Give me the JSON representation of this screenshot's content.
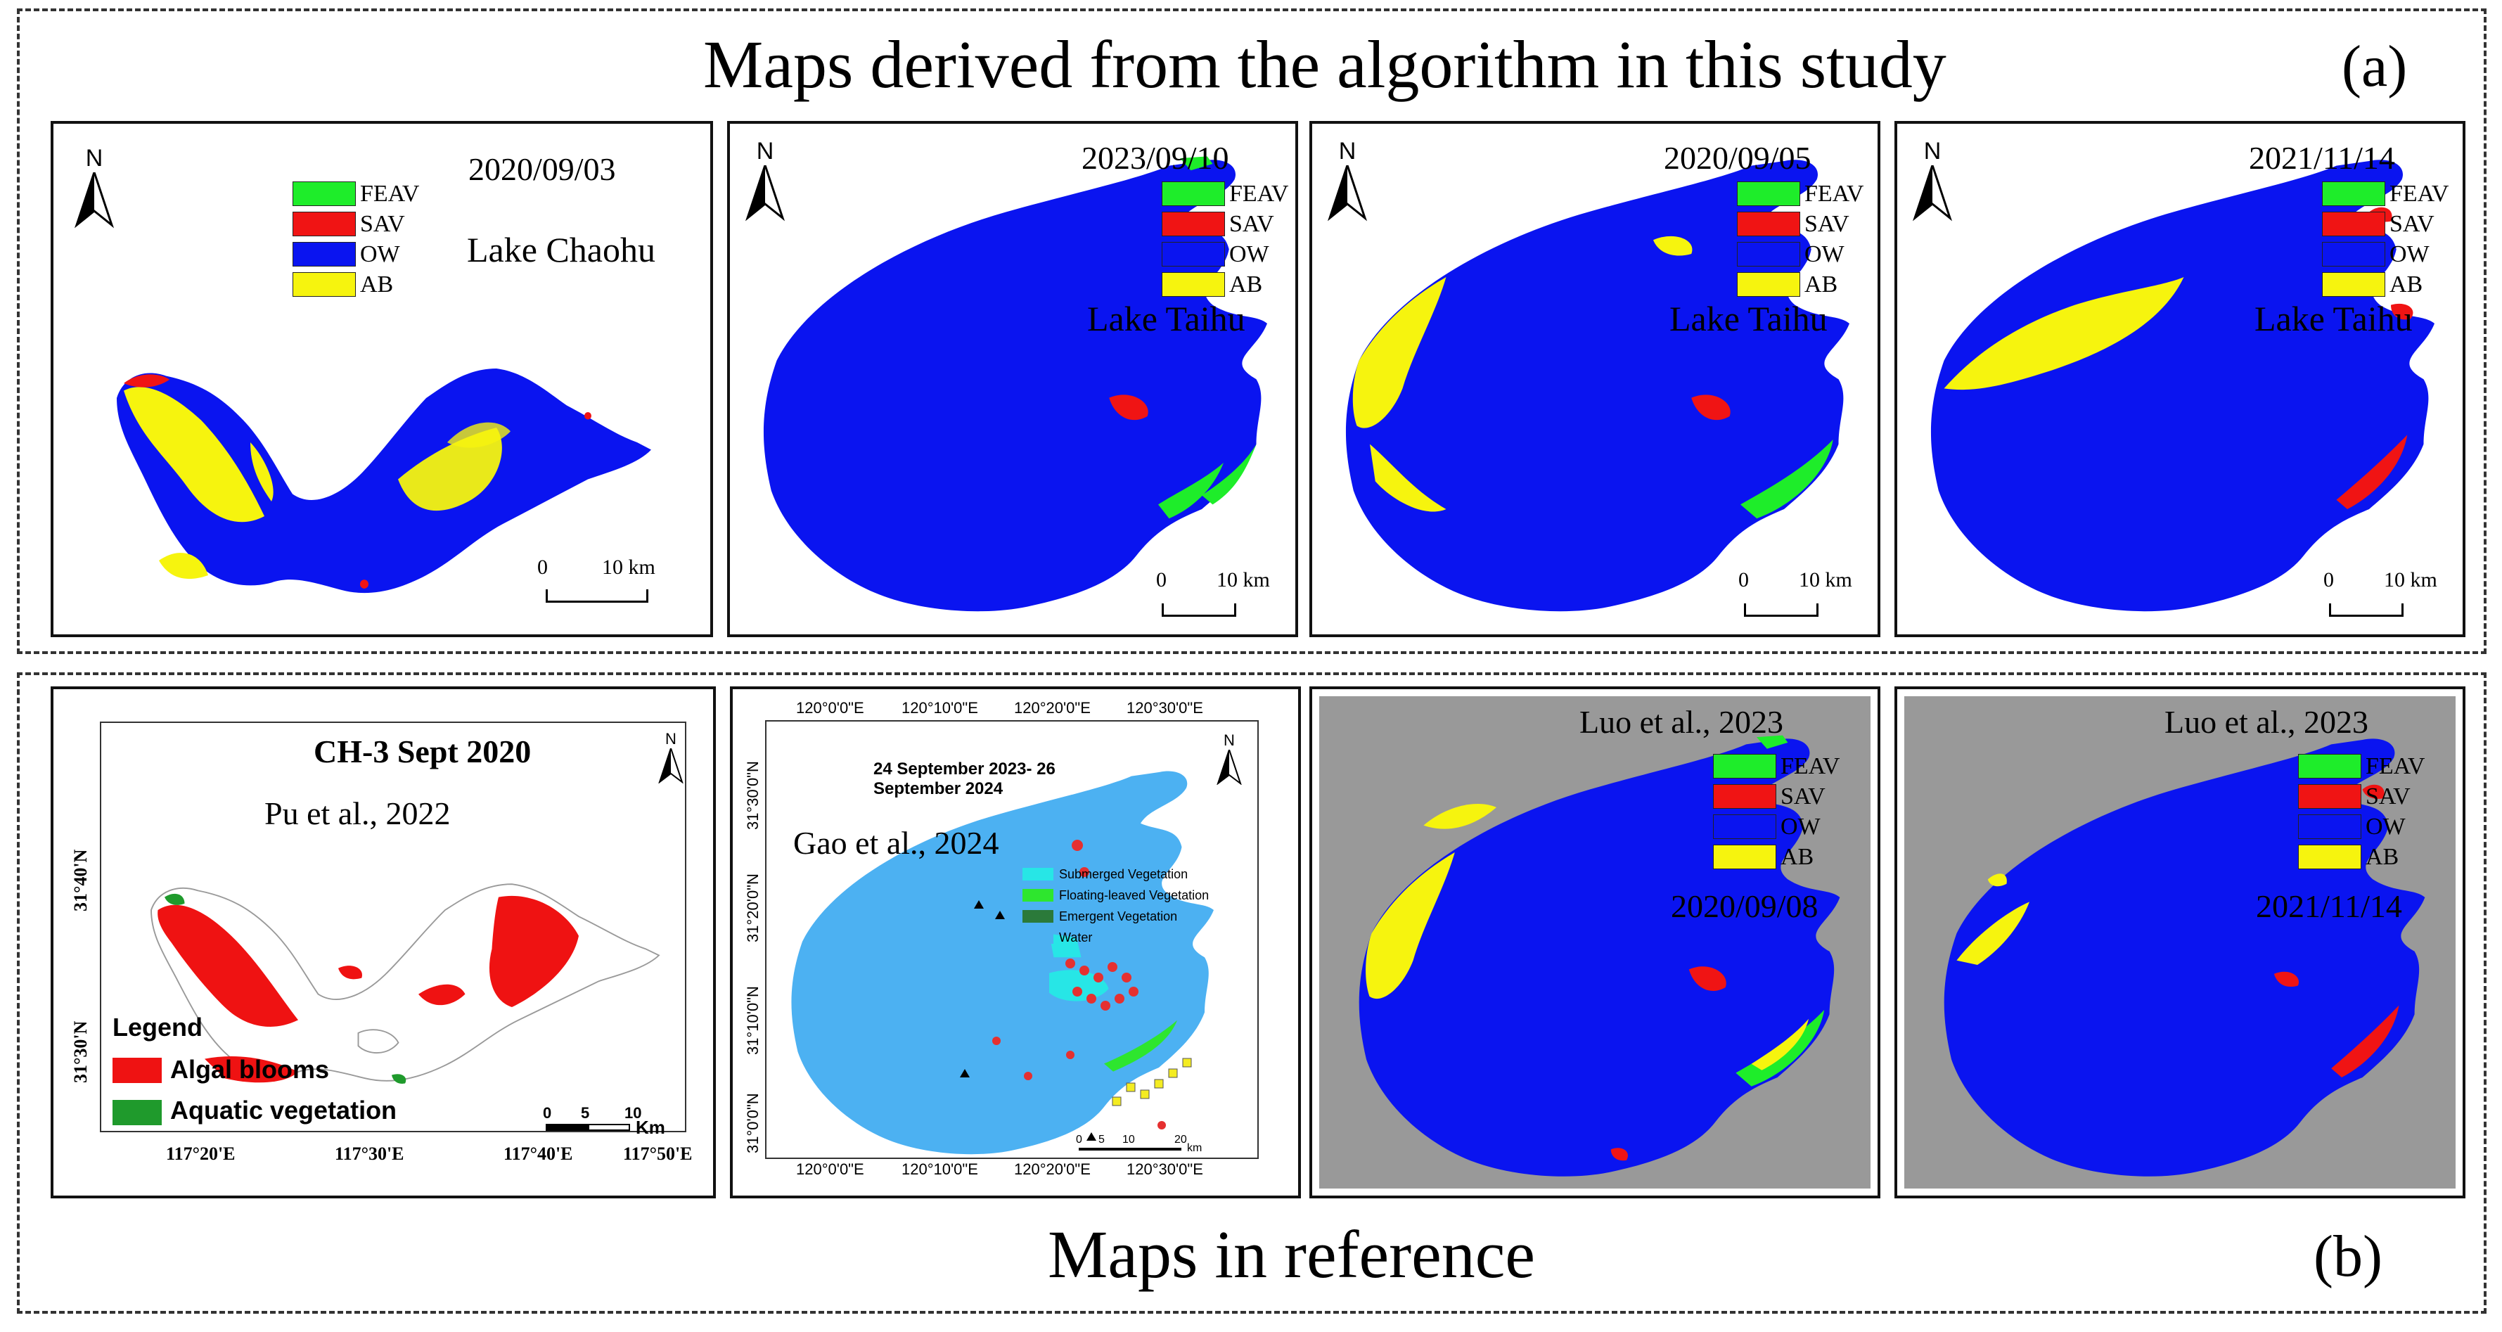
{
  "colors": {
    "feav": "#1eed2a",
    "sav": "#f01414",
    "ow": "#0a14f0",
    "ab": "#f6f40e",
    "ref_water": "#4cb1f2",
    "ref_gray": "#999999",
    "algal": "#ef1212",
    "aquatic_green": "#1f9a2c"
  },
  "section_a": {
    "title": "Maps derived from the algorithm in this study",
    "letter": "(a)"
  },
  "section_b": {
    "title": "Maps in reference",
    "letter": "(b)"
  },
  "legend_labels": [
    "FEAV",
    "SAV",
    "OW",
    "AB"
  ],
  "north_label": "N",
  "panels_a": [
    {
      "date": "2020/09/03",
      "lake": "Lake Chaohu",
      "scale_0": "0",
      "scale_end": "10 km"
    },
    {
      "date": "2023/09/10",
      "lake": "Lake Taihu",
      "scale_0": "0",
      "scale_end": "10 km"
    },
    {
      "date": "2020/09/05",
      "lake": "Lake Taihu",
      "scale_0": "0",
      "scale_end": "10 km"
    },
    {
      "date": "2021/11/14",
      "lake": "Lake Taihu",
      "scale_0": "0",
      "scale_end": "10 km"
    }
  ],
  "pu": {
    "title": "CH-3 Sept 2020",
    "citation": "Pu et al., 2022",
    "legend_title": "Legend",
    "legend_items": [
      "Algal blooms",
      "Aquatic vegetation"
    ],
    "lon_ticks": [
      "117°20'E",
      "117°30'E",
      "117°40'E",
      "117°50'E"
    ],
    "lat_ticks": [
      "31°40'N",
      "31°30'N"
    ],
    "scale": [
      "0",
      "5",
      "10"
    ],
    "scale_unit": "Km"
  },
  "gao": {
    "citation": "Gao et al., 2024",
    "date_range_1": "24 September 2023- 26",
    "date_range_2": "September 2024",
    "legend_items": [
      "Submerged Vegetation",
      "Floating-leaved Vegetation",
      "Emergent Vegetation",
      "Water"
    ],
    "legend_colors": [
      "#27e6e6",
      "#2ee62e",
      "#2b7a3a",
      "#4cb1f2"
    ],
    "lon_ticks": [
      "120°0'0\"E",
      "120°10'0\"E",
      "120°20'0\"E",
      "120°30'0\"E"
    ],
    "lat_ticks": [
      "31°30'0\"N",
      "31°20'0\"N",
      "31°10'0\"N",
      "31°0'0\"N"
    ],
    "scale": [
      "0",
      "5",
      "10",
      "20"
    ],
    "scale_unit": "km"
  },
  "luo": [
    {
      "citation": "Luo et al., 2023",
      "date": "2020/09/08"
    },
    {
      "citation": "Luo et al., 2023",
      "date": "2021/11/14"
    }
  ]
}
